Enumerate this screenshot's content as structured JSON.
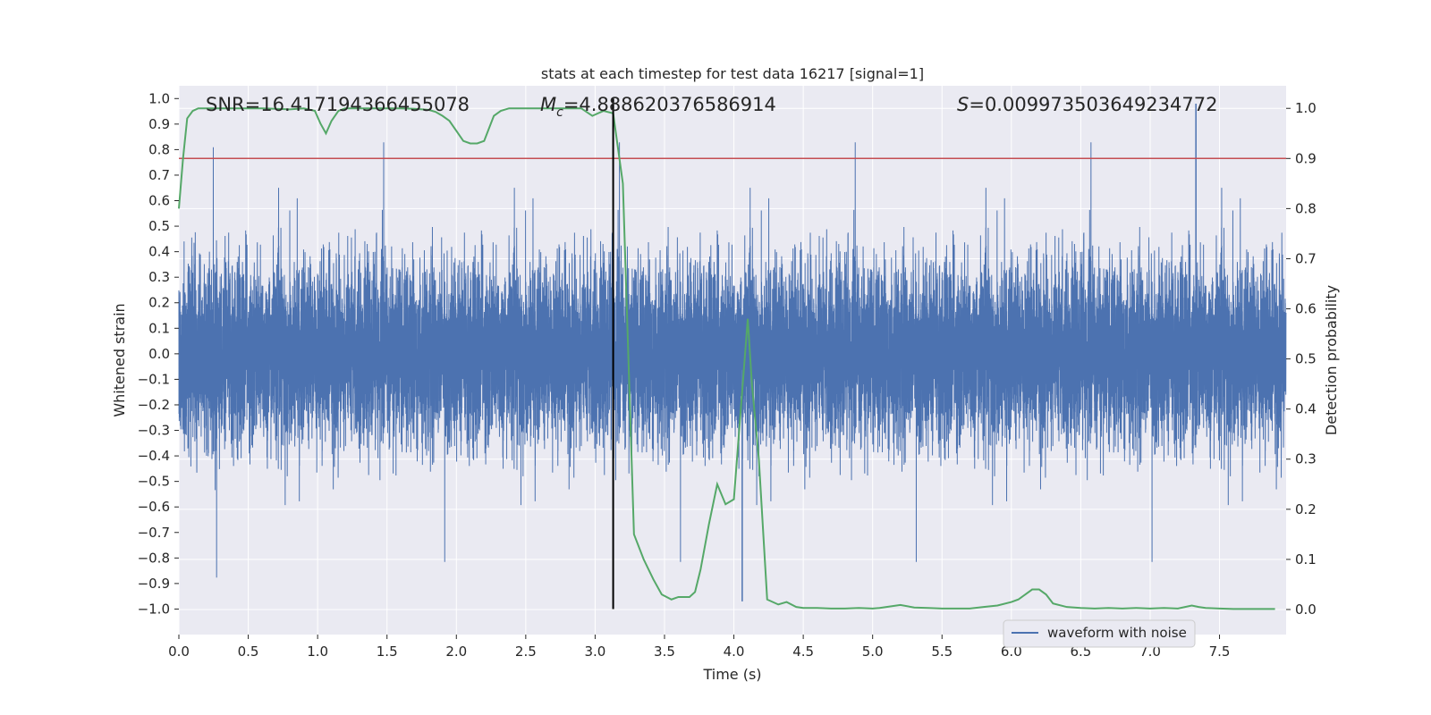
{
  "chart_data": {
    "type": "line",
    "title": "stats at each timestep for test data 16217 [signal=1]",
    "xlabel": "Time (s)",
    "ylabel_left": "Whitened strain",
    "ylabel_right": "Detection probability",
    "xlim": [
      0,
      7.98
    ],
    "ylim_left": [
      -1.1,
      1.05
    ],
    "ylim_right": [
      -0.05,
      1.045
    ],
    "x_ticks": [
      0,
      0.5,
      1,
      1.5,
      2,
      2.5,
      3,
      3.5,
      4,
      4.5,
      5,
      5.5,
      6,
      6.5,
      7,
      7.5
    ],
    "x_tick_labels": [
      "0.0",
      "0.5",
      "1.0",
      "1.5",
      "2.0",
      "2.5",
      "3.0",
      "3.5",
      "4.0",
      "4.5",
      "5.0",
      "5.5",
      "6.0",
      "6.5",
      "7.0",
      "7.5"
    ],
    "y_left_ticks": [
      -1,
      -0.9,
      -0.8,
      -0.7,
      -0.6,
      -0.5,
      -0.4,
      -0.3,
      -0.2,
      -0.1,
      0,
      0.1,
      0.2,
      0.3,
      0.4,
      0.5,
      0.6,
      0.7,
      0.8,
      0.9,
      1
    ],
    "y_left_tick_labels": [
      "−1.0",
      "−0.9",
      "−0.8",
      "−0.7",
      "−0.6",
      "−0.5",
      "−0.4",
      "−0.3",
      "−0.2",
      "−0.1",
      "0.0",
      "0.1",
      "0.2",
      "0.3",
      "0.4",
      "0.5",
      "0.6",
      "0.7",
      "0.8",
      "0.9",
      "1.0"
    ],
    "y_right_ticks": [
      0,
      0.1,
      0.2,
      0.3,
      0.4,
      0.5,
      0.6,
      0.7,
      0.8,
      0.9,
      1
    ],
    "y_right_tick_labels": [
      "0.0",
      "0.1",
      "0.2",
      "0.3",
      "0.4",
      "0.5",
      "0.6",
      "0.7",
      "0.8",
      "0.9",
      "1.0"
    ],
    "annotations": {
      "snr": "SNR=16.417194366455078",
      "mc_symbol": "M",
      "mc_sub": "c",
      "mc_value": "=4.888620376586914",
      "s_symbol": "S",
      "s_value": "=0.009973503649234772"
    },
    "threshold": {
      "value": 0.9,
      "axis": "right",
      "color": "#c44e52"
    },
    "event_marker": {
      "x": 3.13,
      "color": "#000000"
    },
    "legend": {
      "label": "waveform with noise",
      "position": "lower-right"
    },
    "series": [
      {
        "name": "waveform with noise",
        "axis": "left",
        "color": "#4c72b0",
        "style": "dense-noise",
        "sample_rate_hz": 2048,
        "approx_envelope": [
          -0.98,
          0.98
        ],
        "peak_max": {
          "x": 7.33,
          "y": 0.98
        },
        "peak_min": {
          "x": 4.06,
          "y": -0.97
        }
      },
      {
        "name": "detection probability",
        "axis": "right",
        "color": "#55a868",
        "x": [
          0,
          0.03,
          0.06,
          0.1,
          0.14,
          0.2,
          0.3,
          0.4,
          0.5,
          0.6,
          0.7,
          0.8,
          0.9,
          0.98,
          1.02,
          1.06,
          1.1,
          1.15,
          1.2,
          1.3,
          1.4,
          1.5,
          1.6,
          1.7,
          1.8,
          1.85,
          1.9,
          1.95,
          2.0,
          2.05,
          2.1,
          2.15,
          2.2,
          2.27,
          2.32,
          2.38,
          2.45,
          2.55,
          2.7,
          2.9,
          2.98,
          3.06,
          3.13,
          3.2,
          3.28,
          3.35,
          3.42,
          3.48,
          3.55,
          3.6,
          3.68,
          3.72,
          3.76,
          3.82,
          3.88,
          3.94,
          4.0,
          4.05,
          4.1,
          4.13,
          4.18,
          4.24,
          4.32,
          4.38,
          4.45,
          4.5,
          4.6,
          4.7,
          4.8,
          4.9,
          5.0,
          5.05,
          5.1,
          5.2,
          5.3,
          5.4,
          5.5,
          5.6,
          5.7,
          5.8,
          5.9,
          6.0,
          6.05,
          6.1,
          6.15,
          6.2,
          6.25,
          6.3,
          6.4,
          6.5,
          6.6,
          6.7,
          6.8,
          6.9,
          7.0,
          7.1,
          7.2,
          7.3,
          7.35,
          7.4,
          7.5,
          7.6,
          7.7,
          7.8,
          7.9
        ],
        "y": [
          0.8,
          0.9,
          0.98,
          0.995,
          1.0,
          1.0,
          1.0,
          1.0,
          1.0,
          1.0,
          0.999,
          0.998,
          1.0,
          0.995,
          0.97,
          0.95,
          0.975,
          0.995,
          1.0,
          1.0,
          1.0,
          1.0,
          1.0,
          0.999,
          0.997,
          0.993,
          0.985,
          0.975,
          0.955,
          0.935,
          0.93,
          0.93,
          0.935,
          0.985,
          0.995,
          1.0,
          1.0,
          1.0,
          1.0,
          1.0,
          0.985,
          0.995,
          0.99,
          0.85,
          0.15,
          0.1,
          0.06,
          0.03,
          0.02,
          0.025,
          0.025,
          0.035,
          0.08,
          0.17,
          0.25,
          0.21,
          0.22,
          0.4,
          0.58,
          0.45,
          0.3,
          0.02,
          0.01,
          0.015,
          0.005,
          0.003,
          0.003,
          0.002,
          0.002,
          0.003,
          0.002,
          0.003,
          0.005,
          0.009,
          0.004,
          0.003,
          0.002,
          0.002,
          0.002,
          0.005,
          0.008,
          0.015,
          0.02,
          0.03,
          0.04,
          0.04,
          0.03,
          0.012,
          0.005,
          0.003,
          0.002,
          0.003,
          0.002,
          0.003,
          0.002,
          0.003,
          0.002,
          0.008,
          0.005,
          0.003,
          0.002,
          0.001,
          0.001,
          0.001,
          0.001
        ]
      }
    ]
  }
}
